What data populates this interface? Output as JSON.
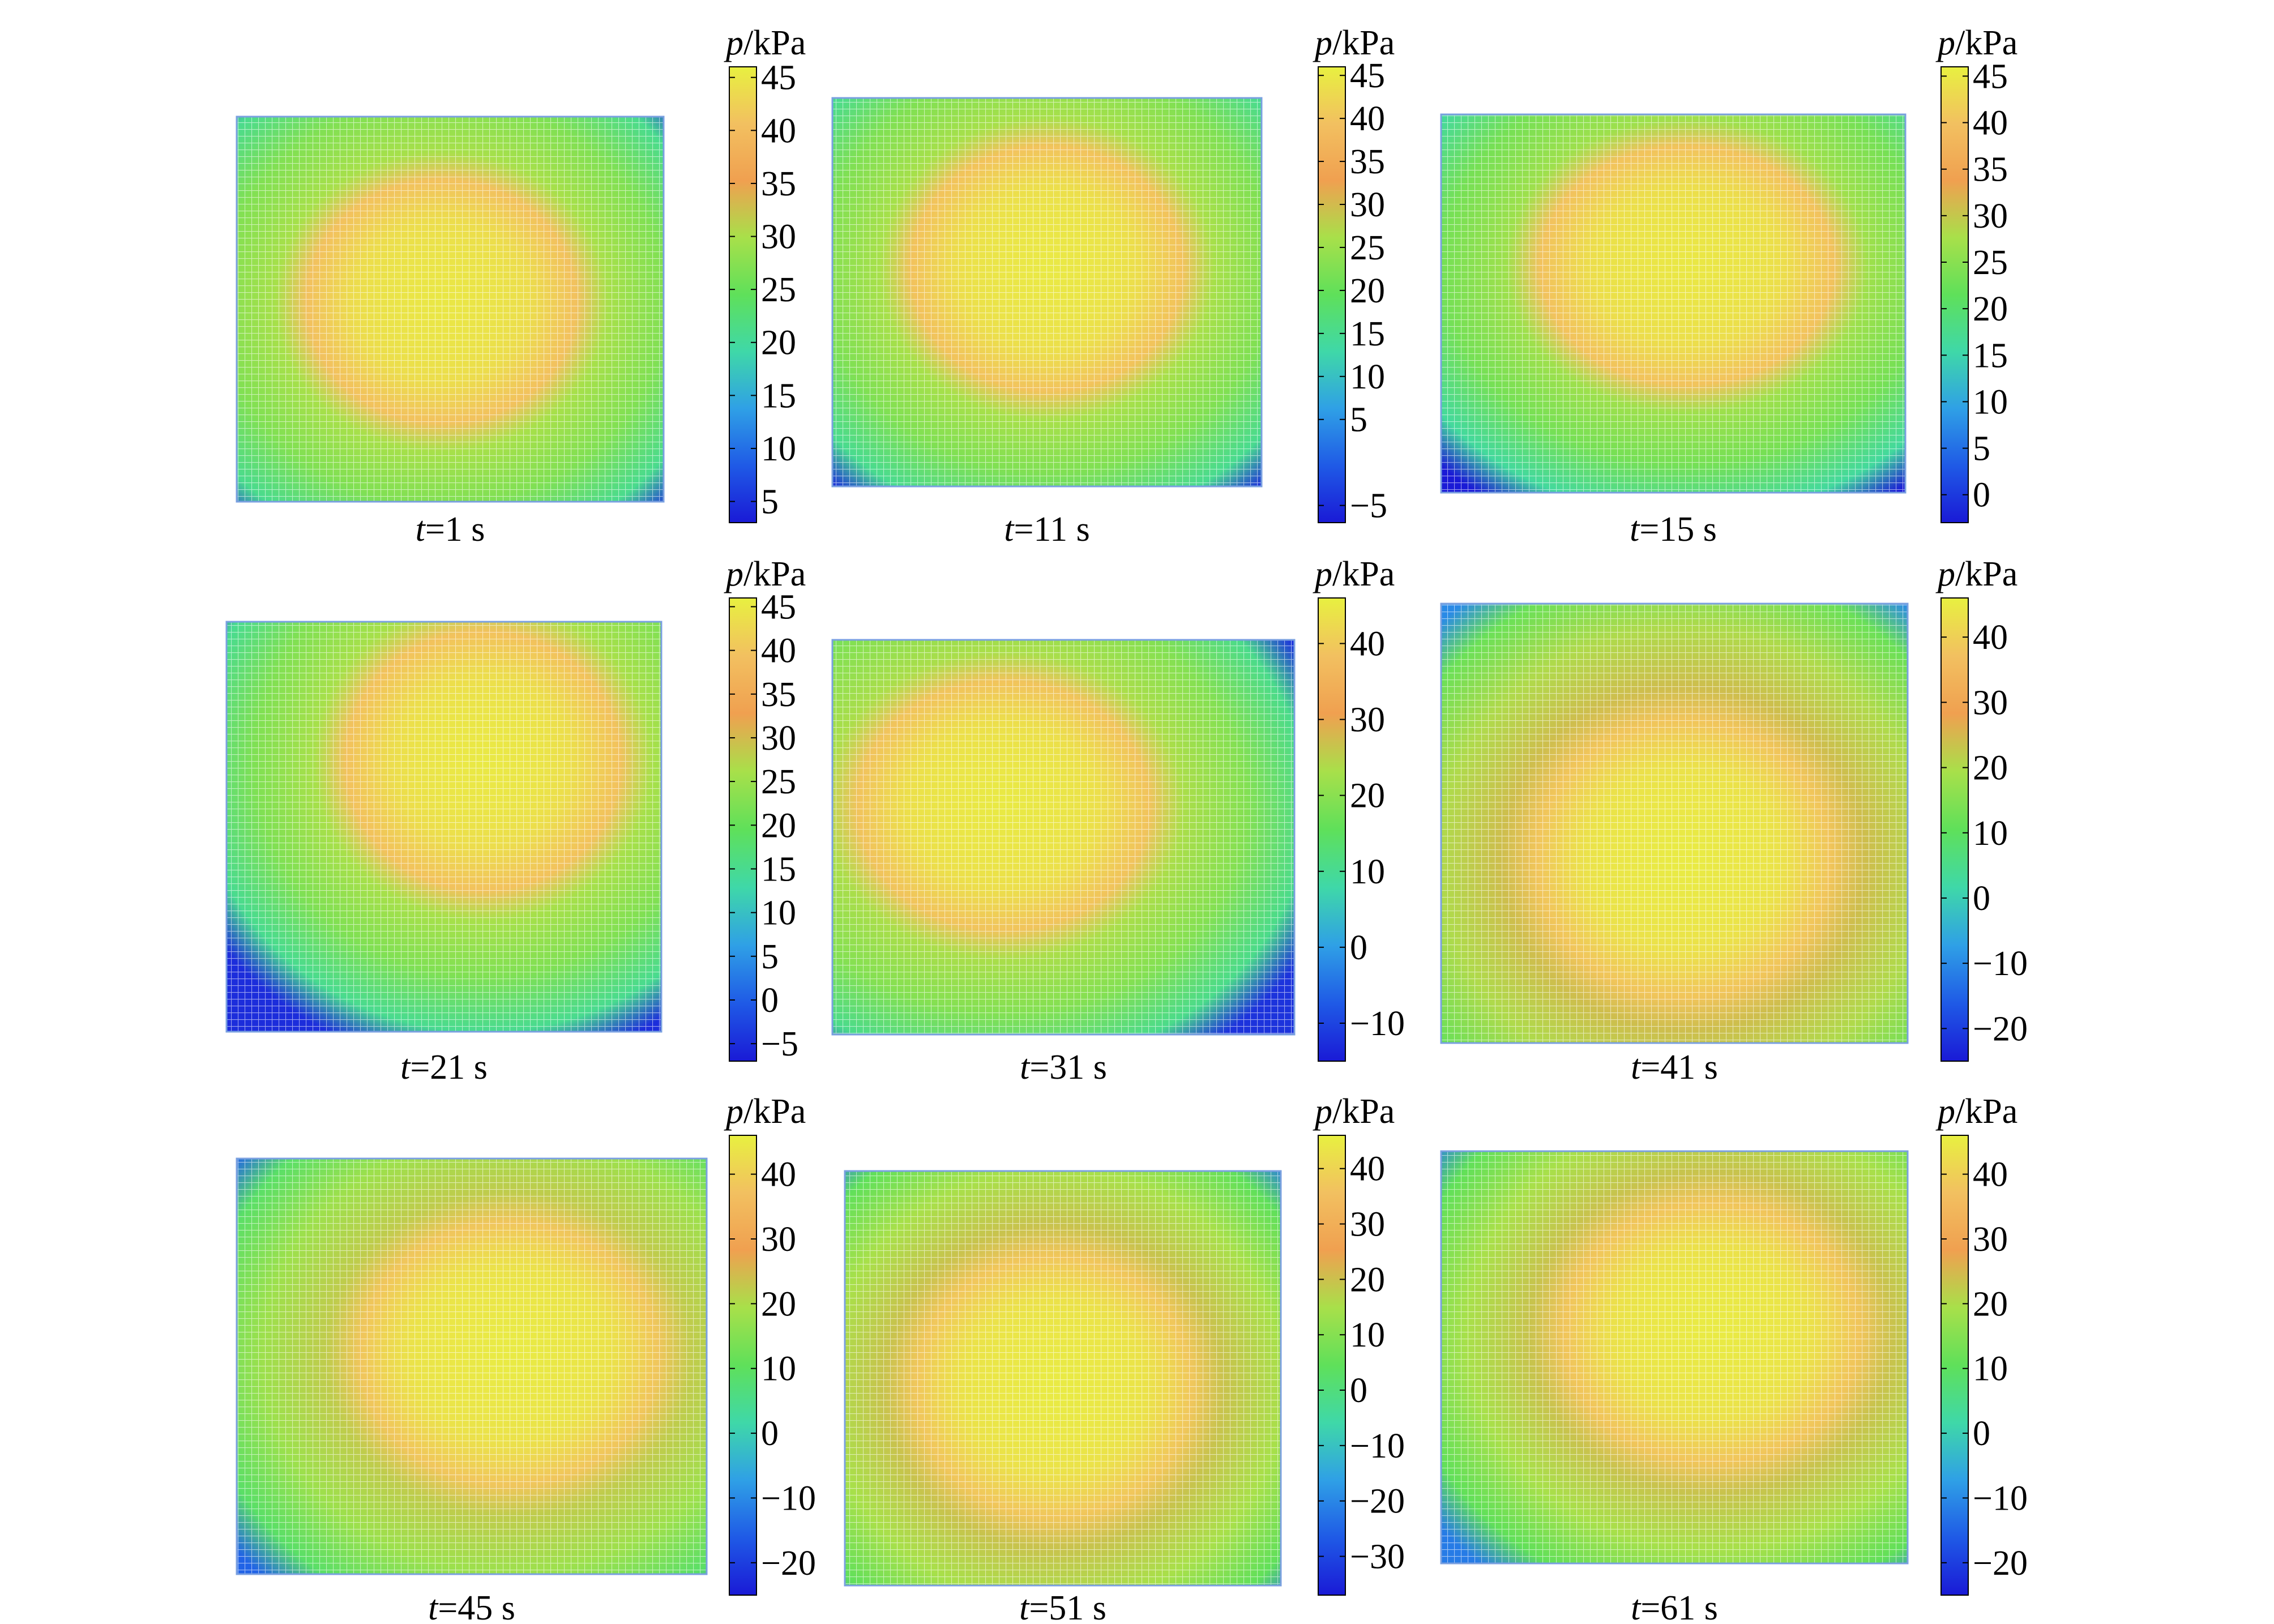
{
  "chart_data": [
    {
      "type": "heatmap",
      "caption": {
        "var": "t",
        "rest": "=1 s"
      },
      "colorbar": {
        "label_var": "p",
        "label_unit": "/kPa",
        "ticks": [
          5,
          10,
          15,
          20,
          25,
          30,
          35,
          40,
          45
        ],
        "range": [
          3,
          46
        ]
      },
      "field": {
        "min": 5,
        "max": 45,
        "peak_center": [
          0.48,
          0.48
        ],
        "peak_radii": [
          0.34,
          0.36
        ]
      }
    },
    {
      "type": "heatmap",
      "caption": {
        "var": "t",
        "rest": "=11 s"
      },
      "colorbar": {
        "label_var": "p",
        "label_unit": "/kPa",
        "ticks": [
          -5,
          5,
          10,
          15,
          20,
          25,
          30,
          35,
          40,
          45
        ],
        "range": [
          -7,
          46
        ]
      },
      "field": {
        "min": -5,
        "max": 45,
        "peak_center": [
          0.5,
          0.44
        ],
        "peak_radii": [
          0.36,
          0.38
        ]
      }
    },
    {
      "type": "heatmap",
      "caption": {
        "var": "t",
        "rest": "=15 s"
      },
      "colorbar": {
        "label_var": "p",
        "label_unit": "/kPa",
        "ticks": [
          0,
          5,
          10,
          15,
          20,
          25,
          30,
          35,
          40,
          45
        ],
        "range": [
          -3,
          46
        ]
      },
      "field": {
        "min": -3,
        "max": 45,
        "peak_center": [
          0.53,
          0.4
        ],
        "peak_radii": [
          0.36,
          0.36
        ]
      }
    },
    {
      "type": "heatmap",
      "caption": {
        "var": "t",
        "rest": "=21 s"
      },
      "colorbar": {
        "label_var": "p",
        "label_unit": "/kPa",
        "ticks": [
          -5,
          0,
          5,
          10,
          15,
          20,
          25,
          30,
          35,
          40,
          45
        ],
        "range": [
          -7,
          46
        ]
      },
      "field": {
        "min": -5,
        "max": 45,
        "peak_center": [
          0.59,
          0.34
        ],
        "peak_radii": [
          0.33,
          0.34
        ]
      }
    },
    {
      "type": "heatmap",
      "caption": {
        "var": "t",
        "rest": "=31 s"
      },
      "colorbar": {
        "label_var": "p",
        "label_unit": "/kPa",
        "ticks": [
          -10,
          0,
          10,
          20,
          30,
          40
        ],
        "range": [
          -15,
          46
        ]
      },
      "field": {
        "min": -12,
        "max": 45,
        "peak_center": [
          0.37,
          0.42
        ],
        "peak_radii": [
          0.36,
          0.36
        ]
      }
    },
    {
      "type": "heatmap",
      "caption": {
        "var": "t",
        "rest": "=41 s"
      },
      "colorbar": {
        "label_var": "p",
        "label_unit": "/kPa",
        "ticks": [
          -20,
          -10,
          0,
          10,
          20,
          30,
          40
        ],
        "range": [
          -25,
          46
        ]
      },
      "field": {
        "min": -10,
        "max": 45,
        "peak_center": [
          0.52,
          0.58
        ],
        "peak_radii": [
          0.4,
          0.38
        ]
      }
    },
    {
      "type": "heatmap",
      "caption": {
        "var": "t",
        "rest": "=45 s"
      },
      "colorbar": {
        "label_var": "p",
        "label_unit": "/kPa",
        "ticks": [
          -20,
          -10,
          0,
          10,
          20,
          30,
          40
        ],
        "range": [
          -25,
          46
        ]
      },
      "field": {
        "min": -15,
        "max": 45,
        "peak_center": [
          0.58,
          0.47
        ],
        "peak_radii": [
          0.42,
          0.4
        ]
      }
    },
    {
      "type": "heatmap",
      "caption": {
        "var": "t",
        "rest": "=51 s"
      },
      "colorbar": {
        "label_var": "p",
        "label_unit": "/kPa",
        "ticks": [
          -30,
          -20,
          -10,
          0,
          10,
          20,
          30,
          40
        ],
        "range": [
          -37,
          46
        ]
      },
      "field": {
        "min": -22,
        "max": 45,
        "peak_center": [
          0.48,
          0.52
        ],
        "peak_radii": [
          0.41,
          0.38
        ]
      }
    },
    {
      "type": "heatmap",
      "caption": {
        "var": "t",
        "rest": "=61 s"
      },
      "colorbar": {
        "label_var": "p",
        "label_unit": "/kPa",
        "ticks": [
          -20,
          -10,
          0,
          10,
          20,
          30,
          40
        ],
        "range": [
          -25,
          46
        ]
      },
      "field": {
        "min": -12,
        "max": 45,
        "peak_center": [
          0.58,
          0.44
        ],
        "peak_radii": [
          0.39,
          0.38
        ]
      }
    }
  ],
  "colormap": [
    "#1a1ad6",
    "#1f5ae6",
    "#2fa0e6",
    "#3fd8a8",
    "#5fe05a",
    "#a8e04a",
    "#f0a050",
    "#f2c060",
    "#e8f040"
  ]
}
